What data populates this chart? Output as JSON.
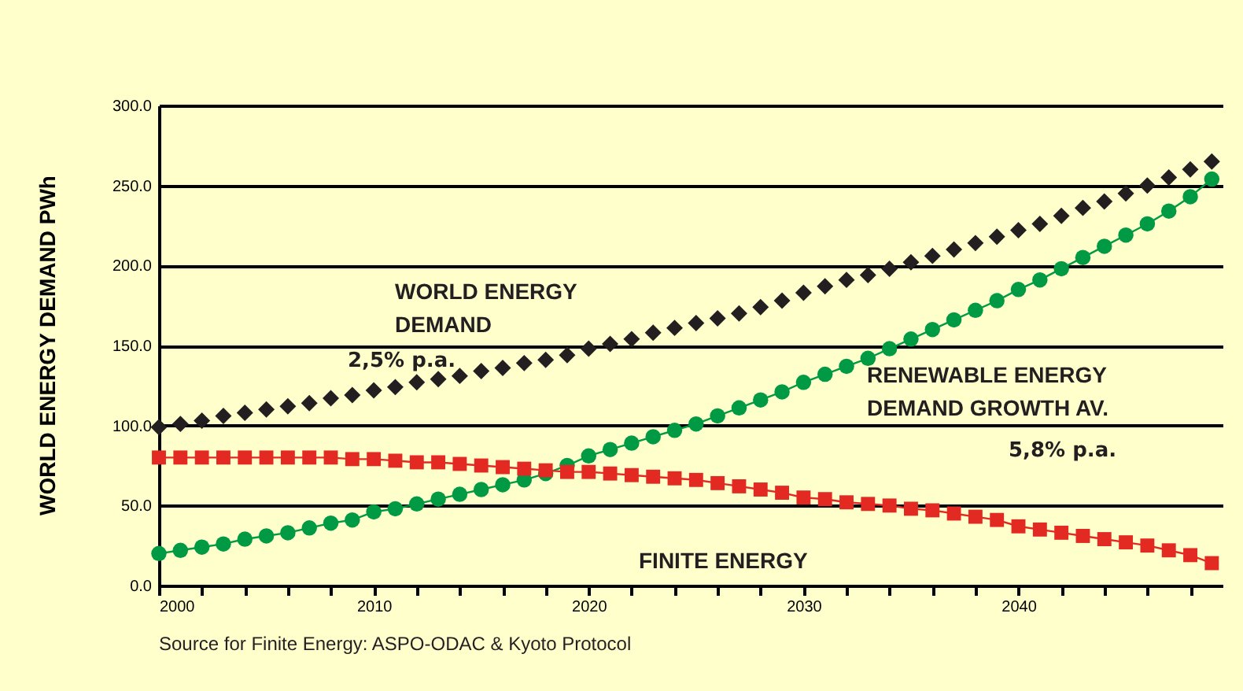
{
  "chart_data": {
    "type": "line",
    "ylabel": "WORLD ENERGY DEMAND PWh",
    "x": [
      2000,
      2001,
      2002,
      2003,
      2004,
      2005,
      2006,
      2007,
      2008,
      2009,
      2010,
      2011,
      2012,
      2013,
      2014,
      2015,
      2016,
      2017,
      2018,
      2019,
      2020,
      2021,
      2022,
      2023,
      2024,
      2025,
      2026,
      2027,
      2028,
      2029,
      2030,
      2031,
      2032,
      2033,
      2034,
      2035,
      2036,
      2037,
      2038,
      2039,
      2040,
      2041,
      2042,
      2043,
      2044,
      2045,
      2046,
      2047,
      2048,
      2049
    ],
    "series": [
      {
        "name": "WORLD ENERGY DEMAND",
        "type": "scatter",
        "marker": "diamond",
        "color": "#231f20",
        "values": [
          99,
          101,
          103,
          106,
          108,
          110,
          112,
          114,
          117,
          119,
          122,
          124,
          127,
          129,
          131,
          134,
          136,
          139,
          141,
          144,
          148,
          151,
          154,
          158,
          161,
          164,
          167,
          170,
          174,
          178,
          183,
          187,
          191,
          194,
          198,
          202,
          206,
          210,
          214,
          218,
          222,
          226,
          231,
          236,
          240,
          245,
          250,
          255,
          260,
          265
        ]
      },
      {
        "name": "RENEWABLE ENERGY DEMAND GROWTH AV.",
        "line_style": "solid",
        "marker": "circle",
        "color": "#009a44",
        "values": [
          20,
          22,
          24,
          26,
          29,
          31,
          33,
          36,
          39,
          41,
          46,
          48,
          51,
          54,
          57,
          60,
          63,
          66,
          70,
          75,
          81,
          85,
          89,
          93,
          97,
          101,
          106,
          111,
          116,
          121,
          127,
          132,
          137,
          142,
          148,
          154,
          160,
          166,
          172,
          178,
          185,
          191,
          198,
          205,
          212,
          219,
          226,
          234,
          243,
          254
        ]
      },
      {
        "name": "FINITE ENERGY",
        "line_style": "solid",
        "marker": "square",
        "color": "#e32a22",
        "values": [
          80,
          80,
          80,
          80,
          80,
          80,
          80,
          80,
          80,
          79,
          79,
          78,
          77,
          77,
          76,
          75,
          74,
          73,
          72,
          71,
          71,
          70,
          69,
          68,
          67,
          66,
          64,
          62,
          60,
          58,
          55,
          54,
          52,
          51,
          50,
          48,
          47,
          45,
          43,
          41,
          37,
          35,
          33,
          31,
          29,
          27,
          25,
          22,
          19,
          14
        ]
      }
    ],
    "annotations": [
      "2,5% p.a.",
      "5,8% p.a.",
      "Source for Finite Energy: ASPO-ODAC & Kyoto Protocol"
    ],
    "xlim": [
      2000,
      2049.5
    ],
    "xticks": [
      2000,
      {
        "value": 2002,
        "label": null
      },
      {
        "value": 2004,
        "label": null
      },
      {
        "value": 2006,
        "label": null
      },
      {
        "value": 2008,
        "label": null
      },
      2010,
      {
        "value": 2012,
        "label": null
      },
      {
        "value": 2014,
        "label": null
      },
      {
        "value": 2016,
        "label": null
      },
      {
        "value": 2018,
        "label": null
      },
      2020,
      {
        "value": 2022,
        "label": null
      },
      {
        "value": 2024,
        "label": null
      },
      {
        "value": 2026,
        "label": null
      },
      {
        "value": 2028,
        "label": null
      },
      2030,
      {
        "value": 2032,
        "label": null
      },
      {
        "value": 2034,
        "label": null
      },
      {
        "value": 2036,
        "label": null
      },
      {
        "value": 2038,
        "label": null
      },
      2040,
      {
        "value": 2042,
        "label": null
      },
      {
        "value": 2044,
        "label": null
      },
      {
        "value": 2046,
        "label": null
      },
      {
        "value": 2048,
        "label": null
      }
    ],
    "ylim": [
      0,
      300
    ],
    "yticks": [
      {
        "value": 0,
        "label": "0.0"
      },
      {
        "value": 50,
        "label": "50.0"
      },
      {
        "value": 100,
        "label": "100.0"
      },
      {
        "value": 150,
        "label": "150.0"
      },
      {
        "value": 200,
        "label": "200.0"
      },
      {
        "value": 250,
        "label": "250.0"
      },
      {
        "value": 300,
        "label": "300.0"
      }
    ],
    "grid": "y"
  }
}
